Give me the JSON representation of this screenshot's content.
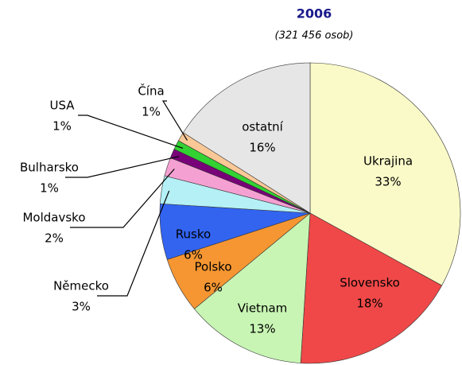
{
  "chart_data": {
    "type": "pie",
    "title": "2006",
    "subtitle": "(321 456 osob)",
    "categories": [
      "Ukrajina",
      "Slovensko",
      "Vietnam",
      "Polsko",
      "Rusko",
      "Německo",
      "Moldavsko",
      "Bulharsko",
      "USA",
      "Čína",
      "ostatní"
    ],
    "values": [
      33,
      18,
      13,
      6,
      6,
      3,
      2,
      1,
      1,
      1,
      16
    ],
    "value_labels": [
      "33%",
      "18%",
      "13%",
      "6%",
      "6%",
      "3%",
      "2%",
      "1%",
      "1%",
      "1%",
      "16%"
    ],
    "colors": [
      "#fafac8",
      "#f04848",
      "#c8f5b4",
      "#f59632",
      "#3264f0",
      "#b4f0f5",
      "#f5a0d2",
      "#780078",
      "#32d232",
      "#fac896",
      "#e6e6e6"
    ]
  }
}
